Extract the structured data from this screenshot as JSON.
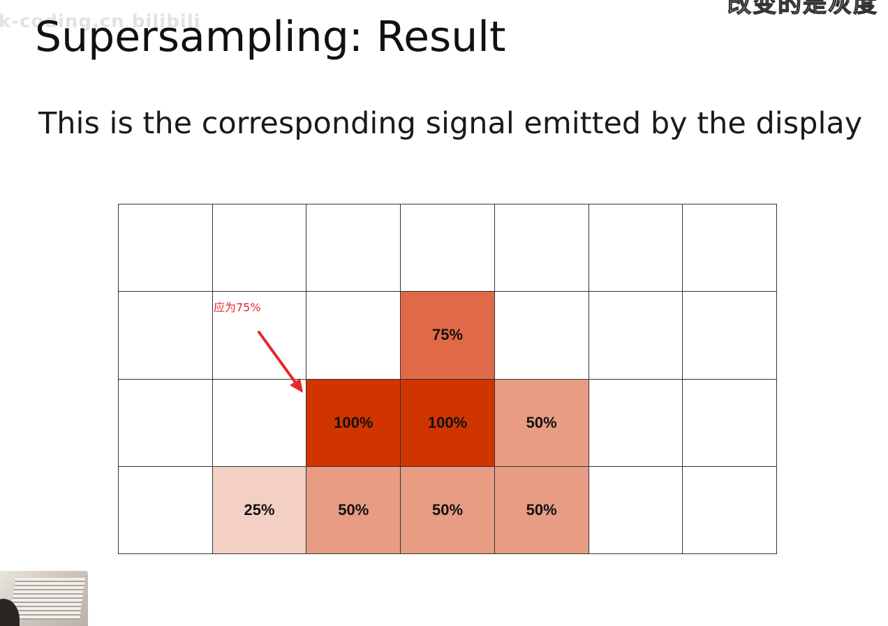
{
  "watermark": "k-coding.cn bilibili",
  "subtitle_overlay": "改变的是灰度",
  "slide": {
    "title": "Supersampling: Result",
    "subtitle": "This is the corresponding signal emitted by the display"
  },
  "annotation": {
    "text": "应为75%",
    "color": "#e8262a"
  },
  "colors": {
    "full": "#d03500",
    "seventy_five": "#e06a47",
    "fifty": "#e89c84",
    "twenty_five": "#f4cfc4",
    "empty": "#ffffff"
  },
  "grid": {
    "cols": 7,
    "rows": 4,
    "cells": [
      [
        "",
        "",
        "",
        "",
        "",
        "",
        ""
      ],
      [
        "",
        "",
        "",
        "75%",
        "",
        "",
        ""
      ],
      [
        "",
        "",
        "100%",
        "100%",
        "50%",
        "",
        ""
      ],
      [
        "",
        "25%",
        "50%",
        "50%",
        "50%",
        "",
        ""
      ]
    ]
  }
}
